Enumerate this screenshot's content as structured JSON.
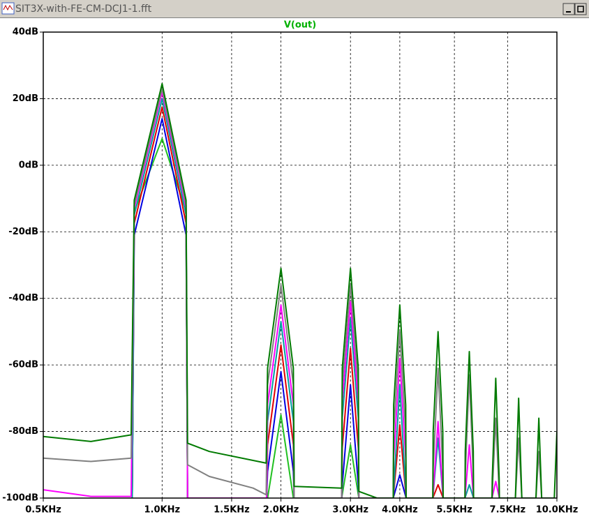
{
  "window_title": "SIT3X-with-FE-CM-DCJ1-1.fft",
  "chart_data": {
    "type": "line",
    "title": "V(out)",
    "title_color": "#00b000",
    "xscale": "log",
    "grid": true,
    "xlim": [
      500,
      10000
    ],
    "ylim": [
      -100,
      40
    ],
    "xticks": [
      {
        "value": 500,
        "label": "0.5KHz"
      },
      {
        "value": 1000,
        "label": "1.0KHz"
      },
      {
        "value": 1500,
        "label": "1.5KHz"
      },
      {
        "value": 2000,
        "label": "2.0KHz"
      },
      {
        "value": 3000,
        "label": "3.0KHz"
      },
      {
        "value": 4000,
        "label": "4.0KHz"
      },
      {
        "value": 5500,
        "label": "5.5KHz"
      },
      {
        "value": 7500,
        "label": "7.5KHz"
      },
      {
        "value": 10000,
        "label": "10.0KHz"
      }
    ],
    "yticks": [
      {
        "value": 40,
        "label": "40dB"
      },
      {
        "value": 20,
        "label": "20dB"
      },
      {
        "value": 0,
        "label": "0dB"
      },
      {
        "value": -20,
        "label": "-20dB"
      },
      {
        "value": -40,
        "label": "-40dB"
      },
      {
        "value": -60,
        "label": "-60dB"
      },
      {
        "value": -80,
        "label": "-80dB"
      },
      {
        "value": -100,
        "label": "-100dB"
      }
    ],
    "series": [
      {
        "color": "#007a00",
        "x": [
          500,
          660,
          835,
          850,
          1000,
          1150,
          1160,
          1317,
          1835,
          1850,
          2000,
          2150,
          2160,
          2850,
          2860,
          3000,
          3140,
          3150,
          3500,
          3850,
          3860,
          4000,
          4140,
          4150,
          4850,
          4860,
          5000,
          5140,
          5150,
          5850,
          5860,
          6000,
          6140,
          6150,
          6850,
          6860,
          7000,
          7140,
          7150,
          7850,
          8000,
          8150,
          8850,
          9000,
          9150,
          9850,
          10000
        ],
        "values": [
          -81.5,
          -83,
          -81,
          -10.5,
          24.5,
          -10.5,
          -83.5,
          -86,
          -89.5,
          -61,
          -31,
          -61,
          -96.5,
          -97,
          -61,
          -31,
          -61,
          -98,
          -100,
          -100,
          -72,
          -42,
          -72,
          -100,
          -100,
          -80,
          -50,
          -80,
          -100,
          -100,
          -86,
          -56,
          -86,
          -100,
          -100,
          -94,
          -64,
          -94,
          -100,
          -100,
          -70,
          -100,
          -100,
          -76,
          -100,
          -100,
          -80
        ]
      },
      {
        "color": "#808080",
        "x": [
          500,
          660,
          835,
          850,
          1000,
          1150,
          1160,
          1317,
          1700,
          1835,
          1850,
          2000,
          2150,
          2160,
          2850,
          2860,
          3000,
          3140,
          3150,
          3850,
          3860,
          4000,
          4140,
          4150,
          4850,
          4860,
          5000,
          5140,
          5150,
          5850,
          5860,
          6000,
          6140,
          6150,
          6850,
          7000,
          7150,
          7850,
          8000,
          8150,
          8850,
          9000,
          9150
        ],
        "values": [
          -88,
          -89,
          -88,
          -12,
          23,
          -12,
          -90,
          -93.5,
          -97,
          -99,
          -66,
          -36,
          -66,
          -100,
          -100,
          -66,
          -36,
          -66,
          -100,
          -100,
          -80,
          -50,
          -80,
          -100,
          -100,
          -91,
          -61,
          -91,
          -100,
          -100,
          -93,
          -63,
          -93,
          -100,
          -100,
          -76,
          -100,
          -100,
          -82,
          -100,
          -100,
          -86,
          -100
        ]
      },
      {
        "color": "#ff00ff",
        "x": [
          500,
          660,
          835,
          850,
          1000,
          1150,
          1160,
          1840,
          1850,
          2000,
          2150,
          2160,
          2850,
          2860,
          3000,
          3140,
          3150,
          3850,
          3860,
          4000,
          4140,
          4150,
          4850,
          5000,
          5150,
          5850,
          6000,
          6150,
          6850,
          7000,
          7150
        ],
        "values": [
          -97.5,
          -99.5,
          -99.5,
          -13,
          22,
          -13,
          -100,
          -100,
          -72,
          -42,
          -72,
          -100,
          -100,
          -71,
          -41,
          -71,
          -100,
          -100,
          -88,
          -58,
          -88,
          -100,
          -100,
          -77,
          -100,
          -100,
          -84,
          -100,
          -100,
          -95,
          -100
        ]
      },
      {
        "color": "#00a0a0",
        "x": [
          840,
          850,
          1000,
          1150,
          1160,
          1840,
          1850,
          2000,
          2150,
          2160,
          2850,
          2860,
          3000,
          3140,
          3150,
          3850,
          4000,
          4150,
          4850,
          5000,
          5150,
          5850,
          6000,
          6150
        ],
        "values": [
          -100,
          -15,
          20,
          -15,
          -100,
          -100,
          -77,
          -47,
          -77,
          -100,
          -100,
          -76,
          -46,
          -76,
          -100,
          -100,
          -66,
          -100,
          -100,
          -82,
          -100,
          -100,
          -96,
          -100
        ]
      },
      {
        "color": "#e00000",
        "x": [
          840,
          850,
          1000,
          1150,
          1160,
          1840,
          1850,
          2000,
          2150,
          2160,
          2850,
          2860,
          3000,
          3140,
          3150,
          3850,
          4000,
          4150,
          4850,
          5000,
          5150
        ],
        "values": [
          -100,
          -17.5,
          17.5,
          -17.5,
          -100,
          -100,
          -84,
          -54,
          -84,
          -100,
          -100,
          -85,
          -55,
          -85,
          -100,
          -100,
          -78,
          -100,
          -100,
          -96,
          -100
        ]
      },
      {
        "color": "#0000e0",
        "x": [
          840,
          850,
          1000,
          1150,
          1160,
          1840,
          1850,
          2000,
          2150,
          2160,
          2850,
          2860,
          3000,
          3140,
          3150,
          3850,
          4000,
          4150
        ],
        "values": [
          -100,
          -21,
          14,
          -21,
          -100,
          -100,
          -92,
          -62,
          -92,
          -100,
          -100,
          -96,
          -66,
          -96,
          -100,
          -100,
          -93,
          -100
        ]
      },
      {
        "color": "#20c020",
        "x": [
          840,
          850,
          1000,
          1150,
          1160,
          1850,
          2000,
          2150,
          2850,
          3000,
          3150
        ],
        "values": [
          -100,
          -14,
          8,
          -14,
          -100,
          -100,
          -75,
          -100,
          -100,
          -84,
          -100
        ]
      }
    ]
  }
}
